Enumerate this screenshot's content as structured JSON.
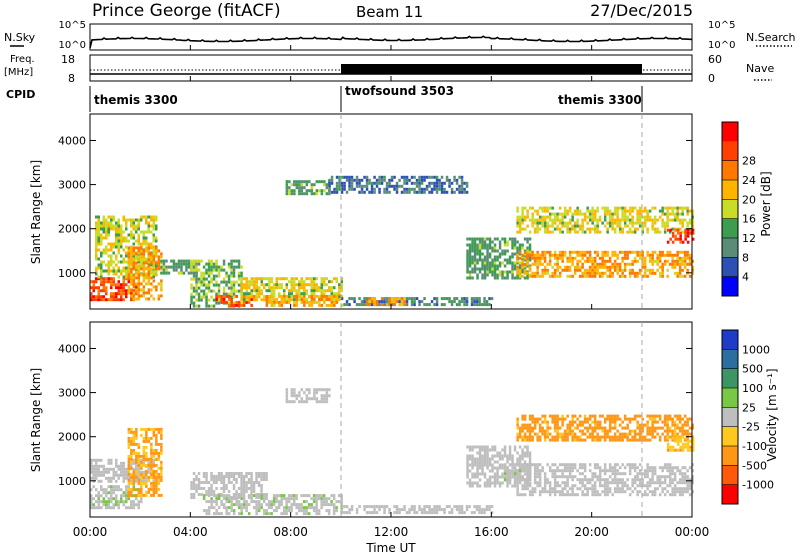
{
  "header": {
    "station": "Prince George (fitACF)",
    "beam": "Beam 11",
    "date": "27/Dec/2015"
  },
  "top_panels": {
    "nsky_label": "N.Sky",
    "nsearch_label": "N.Search",
    "freq_label_1": "Freq.",
    "freq_label_2": "[MHz]",
    "nave_label": "Nave",
    "cpid_label": "CPID",
    "noise_ticks_left": [
      "10^5",
      "10^0"
    ],
    "noise_ticks_right": [
      "10^5",
      "10^0"
    ],
    "freq_ticks": [
      "18",
      "8"
    ],
    "nave_ticks": [
      "60",
      "0"
    ],
    "cpid_segments": [
      {
        "label": "themis 3300",
        "start_hour": 0,
        "end_hour": 10
      },
      {
        "label": "twofsound 3503",
        "start_hour": 10,
        "end_hour": 22
      },
      {
        "label": "themis 3300",
        "start_hour": 22,
        "end_hour": 24
      }
    ]
  },
  "axes": {
    "xlabel": "Time UT",
    "ylabel": "Slant Range [km]",
    "x_ticks": [
      "00:00",
      "04:00",
      "08:00",
      "12:00",
      "16:00",
      "20:00",
      "00:00"
    ],
    "y_ticks": [
      "1000",
      "2000",
      "3000",
      "4000"
    ]
  },
  "power_colorbar": {
    "label": "Power [dB]",
    "ticks": [
      "4",
      "8",
      "12",
      "16",
      "20",
      "24",
      "28"
    ],
    "colors": [
      "#0000ff",
      "#2d50b4",
      "#5a8c78",
      "#3c9c50",
      "#c8dc28",
      "#ffb400",
      "#ff7800",
      "#ff4000",
      "#ff0000"
    ]
  },
  "velocity_colorbar": {
    "label": "Velocity [m s⁻¹]",
    "ticks": [
      "1000",
      "500",
      "100",
      "25",
      "-25",
      "-100",
      "-500",
      "-1000"
    ],
    "colors": [
      "#1e3cc8",
      "#2d6ea0",
      "#3c9664",
      "#78c846",
      "#bebebe",
      "#ffc81e",
      "#ff9614",
      "#ff5a0a",
      "#ff0000"
    ]
  },
  "chart_data": [
    {
      "type": "heatmap",
      "title": "Power",
      "xlabel": "Time UT",
      "ylabel": "Slant Range [km]",
      "xlim": [
        0,
        24
      ],
      "ylim": [
        180,
        4600
      ],
      "colorbar_label": "Power [dB]",
      "colorbar_range": [
        0,
        30
      ],
      "bands": [
        {
          "t0": 0.0,
          "t1": 1.8,
          "r0": 400,
          "r1": 900,
          "value": 26
        },
        {
          "t0": 0.2,
          "t1": 2.6,
          "r0": 900,
          "r1": 2300,
          "value": 15
        },
        {
          "t0": 1.5,
          "t1": 2.8,
          "r0": 400,
          "r1": 1600,
          "value": 20
        },
        {
          "t0": 2.8,
          "t1": 4.2,
          "r0": 1000,
          "r1": 1300,
          "value": 10
        },
        {
          "t0": 4.0,
          "t1": 6.0,
          "r0": 250,
          "r1": 1300,
          "value": 12
        },
        {
          "t0": 5.0,
          "t1": 6.5,
          "r0": 250,
          "r1": 500,
          "value": 26
        },
        {
          "t0": 6.0,
          "t1": 10.0,
          "r0": 400,
          "r1": 900,
          "value": 16
        },
        {
          "t0": 7.0,
          "t1": 10.0,
          "r0": 250,
          "r1": 500,
          "value": 20
        },
        {
          "t0": 10.0,
          "t1": 16.0,
          "r0": 250,
          "r1": 450,
          "value": 8
        },
        {
          "t0": 11.0,
          "t1": 12.5,
          "r0": 250,
          "r1": 450,
          "value": 20
        },
        {
          "t0": 7.8,
          "t1": 9.5,
          "r0": 2800,
          "r1": 3100,
          "value": 10
        },
        {
          "t0": 9.5,
          "t1": 15.0,
          "r0": 2800,
          "r1": 3200,
          "value": 6
        },
        {
          "t0": 15.0,
          "t1": 17.5,
          "r0": 900,
          "r1": 1800,
          "value": 10
        },
        {
          "t0": 17.0,
          "t1": 24.0,
          "r0": 900,
          "r1": 1500,
          "value": 20
        },
        {
          "t0": 17.0,
          "t1": 24.0,
          "r0": 1900,
          "r1": 2500,
          "value": 16
        },
        {
          "t0": 23.0,
          "t1": 24.0,
          "r0": 1700,
          "r1": 2000,
          "value": 26
        }
      ]
    },
    {
      "type": "heatmap",
      "title": "Velocity",
      "xlabel": "Time UT",
      "ylabel": "Slant Range [km]",
      "xlim": [
        0,
        24
      ],
      "ylim": [
        180,
        4600
      ],
      "colorbar_label": "Velocity [m s⁻¹]",
      "colorbar_range": [
        -1000,
        1000
      ],
      "bands": [
        {
          "t0": 0.0,
          "t1": 2.0,
          "r0": 400,
          "r1": 900,
          "value": 80
        },
        {
          "t0": 0.0,
          "t1": 2.5,
          "r0": 1000,
          "r1": 1500,
          "value": 0
        },
        {
          "t0": 1.5,
          "t1": 2.8,
          "r0": 700,
          "r1": 2200,
          "value": -400
        },
        {
          "t0": 4.0,
          "t1": 7.0,
          "r0": 600,
          "r1": 1200,
          "value": 0
        },
        {
          "t0": 4.5,
          "t1": 10.0,
          "r0": 250,
          "r1": 700,
          "value": 60
        },
        {
          "t0": 7.8,
          "t1": 9.5,
          "r0": 2800,
          "r1": 3100,
          "value": 0
        },
        {
          "t0": 10.0,
          "t1": 16.0,
          "r0": 250,
          "r1": 450,
          "value": 0
        },
        {
          "t0": 15.0,
          "t1": 17.5,
          "r0": 900,
          "r1": 1800,
          "value": 0
        },
        {
          "t0": 16.5,
          "t1": 17.5,
          "r0": 1000,
          "r1": 1400,
          "value": 60
        },
        {
          "t0": 17.0,
          "t1": 24.0,
          "r0": 700,
          "r1": 1400,
          "value": 0
        },
        {
          "t0": 17.0,
          "t1": 24.0,
          "r0": 1900,
          "r1": 2500,
          "value": -450
        },
        {
          "t0": 23.0,
          "t1": 24.0,
          "r0": 1700,
          "r1": 2000,
          "value": -300
        }
      ]
    }
  ]
}
